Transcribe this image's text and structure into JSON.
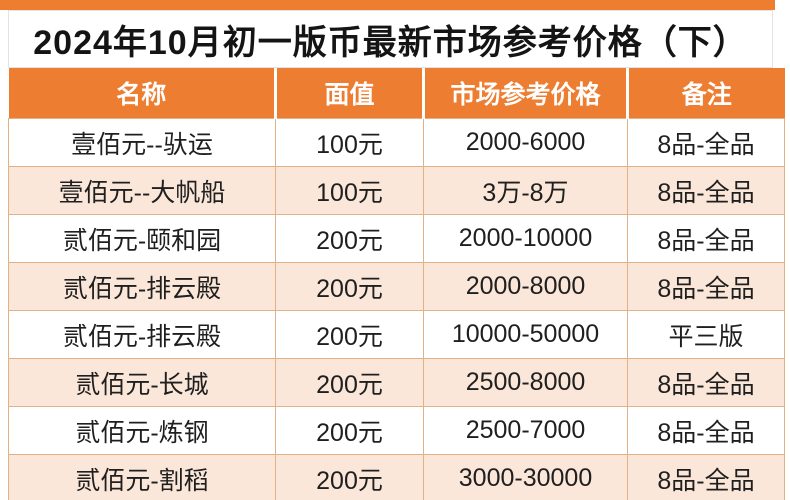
{
  "title": "2024年10月初一版币最新市场参考价格（下）",
  "colors": {
    "accent_orange": "#ED7D31",
    "row_alt_peach": "#FBE7D9",
    "grid_line": "#E2B187",
    "header_text": "#FFFFFF",
    "title_text": "#141414"
  },
  "chart_data": {
    "type": "table",
    "title": "2024年10月初一版币最新市场参考价格（下）",
    "columns": [
      "名称",
      "面值",
      "市场参考价格",
      "备注"
    ],
    "rows": [
      [
        "壹佰元--驮运",
        "100元",
        "2000-6000",
        "8品-全品"
      ],
      [
        "壹佰元--大帆船",
        "100元",
        "3万-8万",
        "8品-全品"
      ],
      [
        "贰佰元-颐和园",
        "200元",
        "2000-10000",
        "8品-全品"
      ],
      [
        "贰佰元-排云殿",
        "200元",
        "2000-8000",
        "8品-全品"
      ],
      [
        "贰佰元-排云殿",
        "200元",
        "10000-50000",
        "平三版"
      ],
      [
        "贰佰元-长城",
        "200元",
        "2500-8000",
        "8品-全品"
      ],
      [
        "贰佰元-炼钢",
        "200元",
        "2500-7000",
        "8品-全品"
      ],
      [
        "贰佰元-割稻",
        "200元",
        "3000-30000",
        "8品-全品"
      ]
    ]
  }
}
